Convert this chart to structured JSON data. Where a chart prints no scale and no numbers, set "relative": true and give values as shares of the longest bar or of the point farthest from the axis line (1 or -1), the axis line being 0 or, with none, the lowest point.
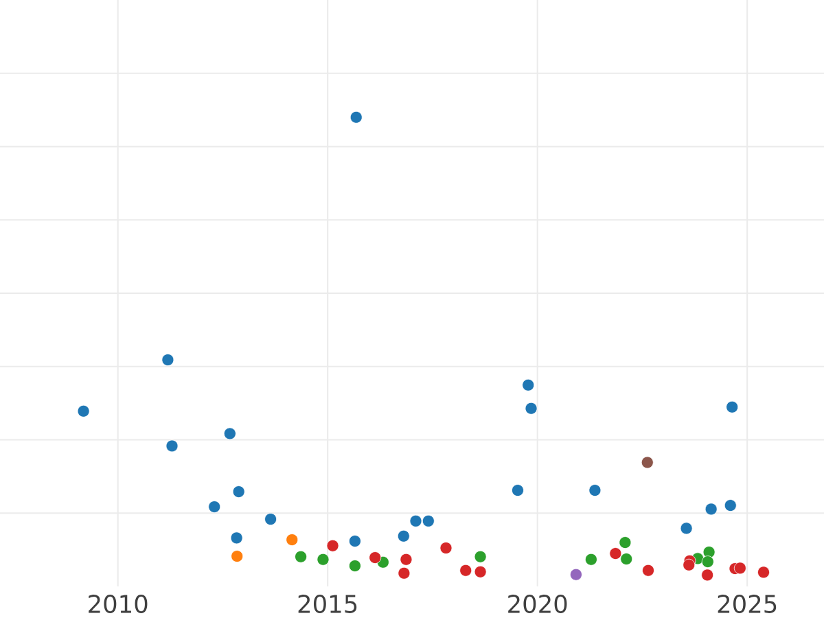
{
  "chart_data": {
    "type": "scatter",
    "relative": true,
    "xlim": [
      2007.19,
      2026.83
    ],
    "xticks": [
      2010,
      2015,
      2020,
      2025
    ],
    "grid": true,
    "marker": "circle",
    "series": [
      {
        "color": "#1f77b4",
        "x": [
          2009.18,
          2011.19,
          2011.29,
          2012.67,
          2012.88,
          2012.3,
          2013.64,
          2012.83,
          2015.68,
          2015.65,
          2016.81,
          2017.1,
          2017.4,
          2019.53,
          2019.78,
          2019.85,
          2021.37,
          2023.55,
          2024.14,
          2024.6,
          2024.64
        ],
        "values": [
          0.358,
          0.47,
          0.282,
          0.309,
          0.182,
          0.149,
          0.122,
          0.081,
          1.0,
          0.074,
          0.085,
          0.118,
          0.118,
          0.185,
          0.415,
          0.364,
          0.185,
          0.102,
          0.144,
          0.152,
          0.367
        ]
      },
      {
        "color": "#ff7f0e",
        "x": [
          2012.84,
          2014.15
        ],
        "values": [
          0.041,
          0.077
        ]
      },
      {
        "color": "#2ca02c",
        "x": [
          2014.36,
          2014.89,
          2015.65,
          2016.32,
          2018.64,
          2021.28,
          2022.09,
          2022.12,
          2023.82,
          2024.09,
          2024.06
        ],
        "values": [
          0.04,
          0.034,
          0.02,
          0.028,
          0.04,
          0.034,
          0.071,
          0.035,
          0.036,
          0.05,
          0.029
        ]
      },
      {
        "color": "#d62728",
        "x": [
          2015.12,
          2016.13,
          2016.87,
          2016.82,
          2017.82,
          2018.29,
          2018.64,
          2021.86,
          2022.64,
          2023.63,
          2023.61,
          2024.05,
          2024.71,
          2024.83,
          2025.39
        ],
        "values": [
          0.064,
          0.038,
          0.034,
          0.004,
          0.059,
          0.01,
          0.007,
          0.047,
          0.01,
          0.031,
          0.022,
          0.0,
          0.014,
          0.015,
          0.006
        ]
      },
      {
        "color": "#9467bd",
        "x": [
          2020.92
        ],
        "values": [
          0.001
        ]
      },
      {
        "color": "#8c564b",
        "x": [
          2022.62
        ],
        "values": [
          0.246
        ]
      }
    ]
  }
}
